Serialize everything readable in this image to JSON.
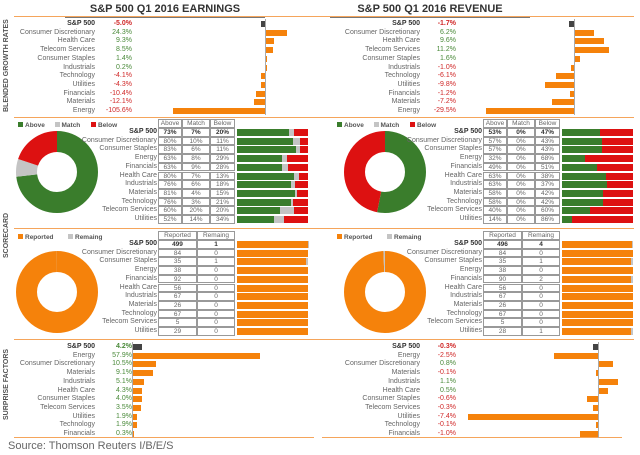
{
  "colors": {
    "orange": "#f5820b",
    "green": "#3a7d2c",
    "gray": "#c4c4c4",
    "red": "#dd1111",
    "dark": "#444444"
  },
  "titles": {
    "earnings": "S&P 500 Q1 2016 EARNINGS",
    "revenue": "S&P 500 Q1 2016 REVENUE"
  },
  "section_labels": {
    "growth": "BLENDED GROWTH RATES",
    "scorecard": "SCORECARD",
    "surprise": "SURPRISE FACTORS"
  },
  "legends": {
    "above": "Above",
    "match": "Match",
    "below": "Below",
    "reported": "Reported",
    "remaining": "Remaing"
  },
  "table_headers": {
    "above": "Above",
    "match": "Match",
    "below": "Below",
    "reported": "Reported",
    "remaining": "Remaing"
  },
  "chart_data": [
    {
      "type": "bar",
      "id": "earnings-growth",
      "orientation": "horizontal",
      "rows": [
        {
          "label": "S&P 500",
          "value": "-5.0%"
        },
        {
          "label": "Consumer Discretionary",
          "value": "24.3%"
        },
        {
          "label": "Health Care",
          "value": "9.3%"
        },
        {
          "label": "Telecom Services",
          "value": "8.5%"
        },
        {
          "label": "Consumer Staples",
          "value": "1.4%"
        },
        {
          "label": "Industrials",
          "value": "0.2%"
        },
        {
          "label": "Technology",
          "value": "-4.1%"
        },
        {
          "label": "Utilities",
          "value": "-4.3%"
        },
        {
          "label": "Financials",
          "value": "-10.4%"
        },
        {
          "label": "Materials",
          "value": "-12.1%"
        },
        {
          "label": "Energy",
          "value": "-105.6%"
        }
      ]
    },
    {
      "type": "bar",
      "id": "revenue-growth",
      "orientation": "horizontal",
      "rows": [
        {
          "label": "S&P 500",
          "value": "-1.7%"
        },
        {
          "label": "Consumer Discretionary",
          "value": "6.2%"
        },
        {
          "label": "Health Care",
          "value": "9.6%"
        },
        {
          "label": "Telecom Services",
          "value": "11.2%"
        },
        {
          "label": "Consumer Staples",
          "value": "1.6%"
        },
        {
          "label": "Industrials",
          "value": "-1.0%"
        },
        {
          "label": "Technology",
          "value": "-6.1%"
        },
        {
          "label": "Utilities",
          "value": "-9.8%"
        },
        {
          "label": "Financials",
          "value": "-1.2%"
        },
        {
          "label": "Materials",
          "value": "-7.2%"
        },
        {
          "label": "Energy",
          "value": "-29.5%"
        }
      ]
    },
    {
      "type": "table",
      "id": "earnings-scorecard",
      "rows": [
        {
          "label": "S&P 500",
          "above": "73%",
          "match": "7%",
          "below": "20%"
        },
        {
          "label": "Consumer Discretionary",
          "above": "80%",
          "match": "10%",
          "below": "11%"
        },
        {
          "label": "Consumer Staples",
          "above": "83%",
          "match": "6%",
          "below": "11%"
        },
        {
          "label": "Energy",
          "above": "63%",
          "match": "8%",
          "below": "29%"
        },
        {
          "label": "Financials",
          "above": "63%",
          "match": "9%",
          "below": "28%"
        },
        {
          "label": "Health Care",
          "above": "80%",
          "match": "7%",
          "below": "13%"
        },
        {
          "label": "Industrials",
          "above": "76%",
          "match": "6%",
          "below": "18%"
        },
        {
          "label": "Materials",
          "above": "81%",
          "match": "4%",
          "below": "15%"
        },
        {
          "label": "Technology",
          "above": "76%",
          "match": "3%",
          "below": "21%"
        },
        {
          "label": "Telecom Services",
          "above": "60%",
          "match": "20%",
          "below": "20%"
        },
        {
          "label": "Utilities",
          "above": "52%",
          "match": "14%",
          "below": "34%"
        }
      ]
    },
    {
      "type": "table",
      "id": "revenue-scorecard",
      "rows": [
        {
          "label": "S&P 500",
          "above": "53%",
          "match": "0%",
          "below": "47%"
        },
        {
          "label": "Consumer Discretionary",
          "above": "57%",
          "match": "0%",
          "below": "43%"
        },
        {
          "label": "Consumer Staples",
          "above": "57%",
          "match": "0%",
          "below": "43%"
        },
        {
          "label": "Energy",
          "above": "32%",
          "match": "0%",
          "below": "68%"
        },
        {
          "label": "Financials",
          "above": "49%",
          "match": "0%",
          "below": "51%"
        },
        {
          "label": "Health Care",
          "above": "63%",
          "match": "0%",
          "below": "38%"
        },
        {
          "label": "Industrials",
          "above": "63%",
          "match": "0%",
          "below": "37%"
        },
        {
          "label": "Materials",
          "above": "58%",
          "match": "0%",
          "below": "42%"
        },
        {
          "label": "Technology",
          "above": "58%",
          "match": "0%",
          "below": "42%"
        },
        {
          "label": "Telecom Services",
          "above": "40%",
          "match": "0%",
          "below": "60%"
        },
        {
          "label": "Utilities",
          "above": "14%",
          "match": "0%",
          "below": "86%"
        }
      ]
    },
    {
      "type": "table",
      "id": "earnings-reported",
      "rows": [
        {
          "label": "S&P 500",
          "reported": "499",
          "remaining": "1"
        },
        {
          "label": "Consumer Discretionary",
          "reported": "84",
          "remaining": "0"
        },
        {
          "label": "Consumer Staples",
          "reported": "35",
          "remaining": "1"
        },
        {
          "label": "Energy",
          "reported": "38",
          "remaining": "0"
        },
        {
          "label": "Financials",
          "reported": "92",
          "remaining": "0"
        },
        {
          "label": "Health Care",
          "reported": "56",
          "remaining": "0"
        },
        {
          "label": "Industrials",
          "reported": "67",
          "remaining": "0"
        },
        {
          "label": "Materials",
          "reported": "26",
          "remaining": "0"
        },
        {
          "label": "Technology",
          "reported": "67",
          "remaining": "0"
        },
        {
          "label": "Telecom Services",
          "reported": "5",
          "remaining": "0"
        },
        {
          "label": "Utilities",
          "reported": "29",
          "remaining": "0"
        }
      ]
    },
    {
      "type": "table",
      "id": "revenue-reported",
      "rows": [
        {
          "label": "S&P 500",
          "reported": "496",
          "remaining": "4"
        },
        {
          "label": "Consumer Discretionary",
          "reported": "84",
          "remaining": "0"
        },
        {
          "label": "Consumer Staples",
          "reported": "35",
          "remaining": "1"
        },
        {
          "label": "Energy",
          "reported": "38",
          "remaining": "0"
        },
        {
          "label": "Financials",
          "reported": "90",
          "remaining": "2"
        },
        {
          "label": "Health Care",
          "reported": "56",
          "remaining": "0"
        },
        {
          "label": "Industrials",
          "reported": "67",
          "remaining": "0"
        },
        {
          "label": "Materials",
          "reported": "26",
          "remaining": "0"
        },
        {
          "label": "Technology",
          "reported": "67",
          "remaining": "0"
        },
        {
          "label": "Telecom Services",
          "reported": "5",
          "remaining": "0"
        },
        {
          "label": "Utilities",
          "reported": "28",
          "remaining": "1"
        }
      ]
    },
    {
      "type": "bar",
      "id": "earnings-surprise",
      "orientation": "horizontal",
      "rows": [
        {
          "label": "S&P 500",
          "value": "4.2%"
        },
        {
          "label": "Energy",
          "value": "57.9%"
        },
        {
          "label": "Consumer Discretionary",
          "value": "10.5%"
        },
        {
          "label": "Materials",
          "value": "9.1%"
        },
        {
          "label": "Industrials",
          "value": "5.1%"
        },
        {
          "label": "Health Care",
          "value": "4.3%"
        },
        {
          "label": "Consumer Staples",
          "value": "4.0%"
        },
        {
          "label": "Telecom Services",
          "value": "3.5%"
        },
        {
          "label": "Utilities",
          "value": "1.9%"
        },
        {
          "label": "Technology",
          "value": "1.9%"
        },
        {
          "label": "Financials",
          "value": "0.3%"
        }
      ]
    },
    {
      "type": "bar",
      "id": "revenue-surprise",
      "orientation": "horizontal",
      "rows": [
        {
          "label": "S&P 500",
          "value": "-0.3%"
        },
        {
          "label": "Energy",
          "value": "-2.5%"
        },
        {
          "label": "Consumer Discretionary",
          "value": "0.8%"
        },
        {
          "label": "Materials",
          "value": "-0.1%"
        },
        {
          "label": "Industrials",
          "value": "1.1%"
        },
        {
          "label": "Health Care",
          "value": "0.5%"
        },
        {
          "label": "Consumer Staples",
          "value": "-0.6%"
        },
        {
          "label": "Telecom Services",
          "value": "-0.3%"
        },
        {
          "label": "Utilities",
          "value": "-7.4%"
        },
        {
          "label": "Technology",
          "value": "-0.1%"
        },
        {
          "label": "Financials",
          "value": "-1.0%"
        }
      ]
    }
  ],
  "source": "Source: Thomson Reuters I/B/E/S"
}
